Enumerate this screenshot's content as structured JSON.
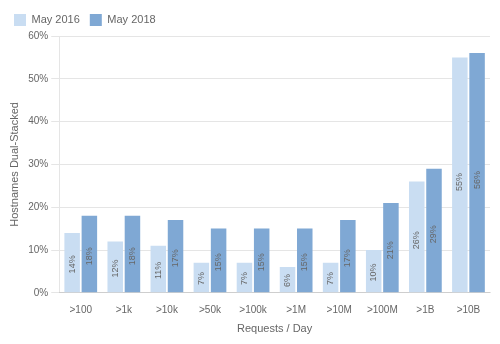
{
  "chart_data": {
    "type": "bar",
    "categories": [
      ">100",
      ">1k",
      ">10k",
      ">50k",
      ">100k",
      ">1M",
      ">10M",
      ">100M",
      ">1B",
      ">10B"
    ],
    "series": [
      {
        "name": "May 2016",
        "color": "#c9ddf2",
        "values": [
          14,
          12,
          11,
          7,
          7,
          6,
          7,
          10,
          26,
          55
        ],
        "value_labels": [
          "14%",
          "12%",
          "11%",
          "7%",
          "7%",
          "6%",
          "7%",
          "10%",
          "26%",
          "55%"
        ]
      },
      {
        "name": "May 2018",
        "color": "#7fa8d4",
        "values": [
          18,
          18,
          17,
          15,
          15,
          15,
          17,
          21,
          29,
          56
        ],
        "value_labels": [
          "18%",
          "18%",
          "17%",
          "15%",
          "15%",
          "15%",
          "17%",
          "21%",
          "29%",
          "56%"
        ]
      }
    ],
    "xlabel": "Requests / Day",
    "ylabel": "Hostnames Dual-Stacked",
    "ylim": [
      0,
      60
    ],
    "yticks": [
      {
        "value": 0,
        "label": "0%"
      },
      {
        "value": 10,
        "label": "10%"
      },
      {
        "value": 20,
        "label": "20%"
      },
      {
        "value": 30,
        "label": "30%"
      },
      {
        "value": 40,
        "label": "40%"
      },
      {
        "value": 50,
        "label": "50%"
      },
      {
        "value": 60,
        "label": "60%"
      }
    ],
    "grid": true,
    "legend": "upper left",
    "data_labels": true
  }
}
